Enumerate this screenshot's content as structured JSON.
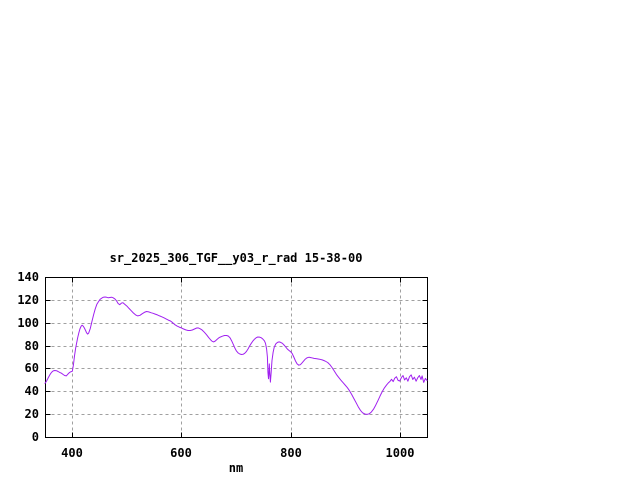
{
  "figure": {
    "background": "#ffffff"
  },
  "chart_data": {
    "type": "line",
    "title": "sr_2025_306_TGF__y03_r_rad 15-38-00",
    "xlabel": "nm",
    "ylabel": "",
    "xlim": [
      350,
      1050
    ],
    "ylim": [
      0,
      140
    ],
    "xticks": [
      400,
      600,
      800,
      1000
    ],
    "yticks": [
      0,
      20,
      40,
      60,
      80,
      100,
      120,
      140
    ],
    "grid": true,
    "legend_position": "none",
    "colors": {
      "line": "#a020f0",
      "grid": "#a0a0a0",
      "axis": "#000000",
      "text": "#000000",
      "background": "#ffffff"
    },
    "series": [
      {
        "points": [
          [
            350,
            47
          ],
          [
            353,
            49
          ],
          [
            356,
            52
          ],
          [
            359,
            54.5
          ],
          [
            362,
            56.5
          ],
          [
            365,
            57.8
          ],
          [
            368,
            58.2
          ],
          [
            371,
            58
          ],
          [
            374,
            57.3
          ],
          [
            377,
            56.5
          ],
          [
            380,
            55.8
          ],
          [
            383,
            54.8
          ],
          [
            386,
            53.8
          ],
          [
            389,
            53.5
          ],
          [
            392,
            55
          ],
          [
            395,
            56.5
          ],
          [
            398,
            57.2
          ],
          [
            400,
            57.5
          ],
          [
            402,
            63
          ],
          [
            404,
            71
          ],
          [
            406,
            77.5
          ],
          [
            408,
            82.5
          ],
          [
            410,
            87
          ],
          [
            412,
            91
          ],
          [
            414,
            94.5
          ],
          [
            416,
            96.8
          ],
          [
            418,
            97.8
          ],
          [
            420,
            97
          ],
          [
            422,
            95.5
          ],
          [
            424,
            93.5
          ],
          [
            426,
            91.3
          ],
          [
            428,
            90
          ],
          [
            430,
            91
          ],
          [
            433,
            95
          ],
          [
            436,
            101
          ],
          [
            439,
            107
          ],
          [
            442,
            112
          ],
          [
            445,
            116
          ],
          [
            448,
            118.5
          ],
          [
            451,
            120.5
          ],
          [
            454,
            121.5
          ],
          [
            457,
            122.3
          ],
          [
            460,
            122.5
          ],
          [
            463,
            122.2
          ],
          [
            466,
            121.8
          ],
          [
            469,
            122.1
          ],
          [
            472,
            122.3
          ],
          [
            475,
            121.8
          ],
          [
            478,
            120.8
          ],
          [
            481,
            119.2
          ],
          [
            484,
            116.8
          ],
          [
            487,
            115.8
          ],
          [
            490,
            117.2
          ],
          [
            493,
            117.5
          ],
          [
            496,
            116.2
          ],
          [
            500,
            114.5
          ],
          [
            504,
            112.5
          ],
          [
            508,
            110.5
          ],
          [
            512,
            108.5
          ],
          [
            516,
            106.8
          ],
          [
            520,
            106
          ],
          [
            524,
            106.5
          ],
          [
            528,
            107.8
          ],
          [
            532,
            109
          ],
          [
            536,
            109.8
          ],
          [
            540,
            109.5
          ],
          [
            544,
            108.8
          ],
          [
            548,
            108.2
          ],
          [
            552,
            107.5
          ],
          [
            556,
            106.8
          ],
          [
            560,
            106
          ],
          [
            564,
            105.2
          ],
          [
            568,
            104.3
          ],
          [
            572,
            103.3
          ],
          [
            576,
            102.3
          ],
          [
            580,
            101.5
          ],
          [
            584,
            100
          ],
          [
            588,
            98.3
          ],
          [
            592,
            97
          ],
          [
            596,
            96.2
          ],
          [
            600,
            95.5
          ],
          [
            604,
            94.5
          ],
          [
            608,
            93.7
          ],
          [
            612,
            93.2
          ],
          [
            616,
            93.2
          ],
          [
            620,
            93.6
          ],
          [
            624,
            94.5
          ],
          [
            628,
            95.4
          ],
          [
            631,
            95.5
          ],
          [
            634,
            94.8
          ],
          [
            638,
            93.5
          ],
          [
            642,
            91.7
          ],
          [
            646,
            89.5
          ],
          [
            650,
            87
          ],
          [
            653,
            85.2
          ],
          [
            656,
            83.8
          ],
          [
            659,
            83.2
          ],
          [
            662,
            84
          ],
          [
            665,
            85.3
          ],
          [
            668,
            86.5
          ],
          [
            671,
            87.4
          ],
          [
            675,
            88.2
          ],
          [
            679,
            88.8
          ],
          [
            683,
            88.8
          ],
          [
            686,
            88.3
          ],
          [
            689,
            86.8
          ],
          [
            692,
            84.3
          ],
          [
            695,
            81
          ],
          [
            698,
            77.8
          ],
          [
            701,
            75.2
          ],
          [
            704,
            73.5
          ],
          [
            707,
            72.6
          ],
          [
            710,
            72.2
          ],
          [
            713,
            72.4
          ],
          [
            716,
            73.2
          ],
          [
            719,
            74.8
          ],
          [
            722,
            77
          ],
          [
            725,
            79.6
          ],
          [
            728,
            82
          ],
          [
            731,
            84
          ],
          [
            734,
            85.7
          ],
          [
            737,
            86.9
          ],
          [
            740,
            87.5
          ],
          [
            743,
            87.4
          ],
          [
            746,
            86.9
          ],
          [
            749,
            85.8
          ],
          [
            752,
            84.2
          ],
          [
            754,
            82
          ],
          [
            756,
            77
          ],
          [
            757.5,
            70
          ],
          [
            758.5,
            57
          ],
          [
            759.5,
            51
          ],
          [
            760.5,
            58
          ],
          [
            761,
            64
          ],
          [
            762,
            55
          ],
          [
            763,
            48
          ],
          [
            764.5,
            57
          ],
          [
            766,
            67
          ],
          [
            768,
            74
          ],
          [
            770,
            78.5
          ],
          [
            773,
            81.5
          ],
          [
            776,
            82.8
          ],
          [
            779,
            83.2
          ],
          [
            782,
            82.8
          ],
          [
            785,
            82
          ],
          [
            788,
            80.5
          ],
          [
            791,
            78.8
          ],
          [
            794,
            77
          ],
          [
            797,
            75.8
          ],
          [
            800,
            74.6
          ],
          [
            803,
            73
          ],
          [
            806,
            70
          ],
          [
            809,
            66.5
          ],
          [
            812,
            64
          ],
          [
            815,
            62.8
          ],
          [
            818,
            63.3
          ],
          [
            821,
            64.8
          ],
          [
            824,
            66.6
          ],
          [
            827,
            68.2
          ],
          [
            830,
            69.2
          ],
          [
            834,
            69.8
          ],
          [
            838,
            69.4
          ],
          [
            843,
            68.8
          ],
          [
            848,
            68.4
          ],
          [
            853,
            68.1
          ],
          [
            858,
            67.5
          ],
          [
            863,
            66.5
          ],
          [
            868,
            65.2
          ],
          [
            872,
            63.3
          ],
          [
            876,
            60.8
          ],
          [
            880,
            57.8
          ],
          [
            884,
            54.8
          ],
          [
            888,
            52.2
          ],
          [
            892,
            49.8
          ],
          [
            896,
            47.6
          ],
          [
            900,
            45.5
          ],
          [
            904,
            43.2
          ],
          [
            908,
            40.5
          ],
          [
            912,
            37.2
          ],
          [
            916,
            33.6
          ],
          [
            920,
            30
          ],
          [
            924,
            26.5
          ],
          [
            928,
            23.4
          ],
          [
            932,
            21.2
          ],
          [
            936,
            20.1
          ],
          [
            940,
            19.8
          ],
          [
            944,
            20.3
          ],
          [
            948,
            21.8
          ],
          [
            952,
            24.3
          ],
          [
            956,
            27.8
          ],
          [
            960,
            31.8
          ],
          [
            964,
            36
          ],
          [
            968,
            39.8
          ],
          [
            972,
            43
          ],
          [
            976,
            45.6
          ],
          [
            979,
            47.3
          ],
          [
            982,
            48.6
          ],
          [
            985,
            50.5
          ],
          [
            988,
            48.5
          ],
          [
            991,
            51.5
          ],
          [
            994,
            52.8
          ],
          [
            997,
            49.5
          ],
          [
            1000,
            49
          ],
          [
            1003,
            52
          ],
          [
            1006,
            53.8
          ],
          [
            1009,
            50
          ],
          [
            1012,
            51.8
          ],
          [
            1015,
            48.8
          ],
          [
            1018,
            52.8
          ],
          [
            1021,
            54.3
          ],
          [
            1024,
            50.3
          ],
          [
            1027,
            52.3
          ],
          [
            1030,
            48.8
          ],
          [
            1033,
            51.8
          ],
          [
            1036,
            53.8
          ],
          [
            1039,
            50.3
          ],
          [
            1041,
            53.5
          ],
          [
            1044,
            47.8
          ],
          [
            1047,
            51.3
          ],
          [
            1050,
            49.5
          ]
        ]
      }
    ]
  }
}
